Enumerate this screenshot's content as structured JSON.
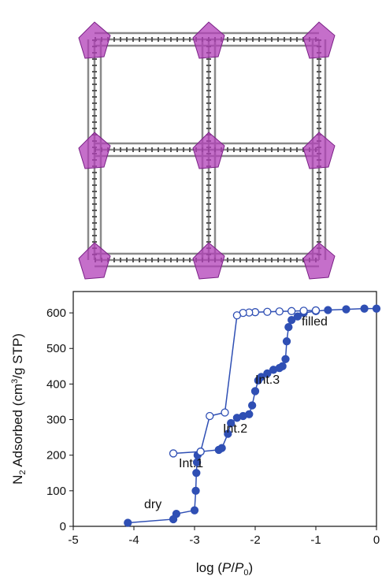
{
  "chart_data": {
    "type": "line",
    "xlabel": [
      "log (",
      "P",
      "/",
      "P",
      "0",
      ")"
    ],
    "ylabel": [
      "N",
      "2",
      " Adsorbed (cm",
      "3",
      "/g STP)"
    ],
    "xlim": [
      -5,
      0
    ],
    "xticks": [
      -5,
      -4,
      -3,
      -2,
      -1,
      0
    ],
    "ylim": [
      0,
      660
    ],
    "yticks": [
      0,
      100,
      200,
      300,
      400,
      500,
      600
    ],
    "annotations": [
      "dry",
      "Int.1",
      "Int.2",
      "Int.3",
      "filled"
    ],
    "series": [
      {
        "color": "#2f4fb4",
        "marker": "filled",
        "x": [
          -4.1,
          -3.35,
          -3.3,
          -3.0,
          -2.98,
          -2.97,
          -2.96,
          -2.95,
          -2.9,
          -2.6,
          -2.55,
          -2.45,
          -2.4,
          -2.3,
          -2.2,
          -2.1,
          -2.05,
          -2.0,
          -1.95,
          -1.9,
          -1.8,
          -1.7,
          -1.6,
          -1.55,
          -1.5,
          -1.48,
          -1.45,
          -1.4,
          -1.3,
          -1.2,
          -1.0,
          -0.8,
          -0.5,
          -0.2,
          0
        ],
        "values": [
          10,
          20,
          35,
          45,
          100,
          150,
          180,
          200,
          210,
          215,
          220,
          260,
          290,
          305,
          310,
          315,
          340,
          380,
          410,
          420,
          430,
          440,
          445,
          450,
          470,
          520,
          560,
          580,
          590,
          600,
          605,
          608,
          610,
          612,
          612
        ]
      },
      {
        "color": "#2f4fb4",
        "marker": "open",
        "x": [
          -1.0,
          -1.2,
          -1.4,
          -1.6,
          -1.8,
          -2.0,
          -2.1,
          -2.2,
          -2.3,
          -2.5,
          -2.75,
          -2.9,
          -3.35
        ],
        "values": [
          607,
          606,
          605,
          604,
          603,
          602,
          601,
          600,
          593,
          320,
          310,
          210,
          205
        ]
      }
    ]
  }
}
